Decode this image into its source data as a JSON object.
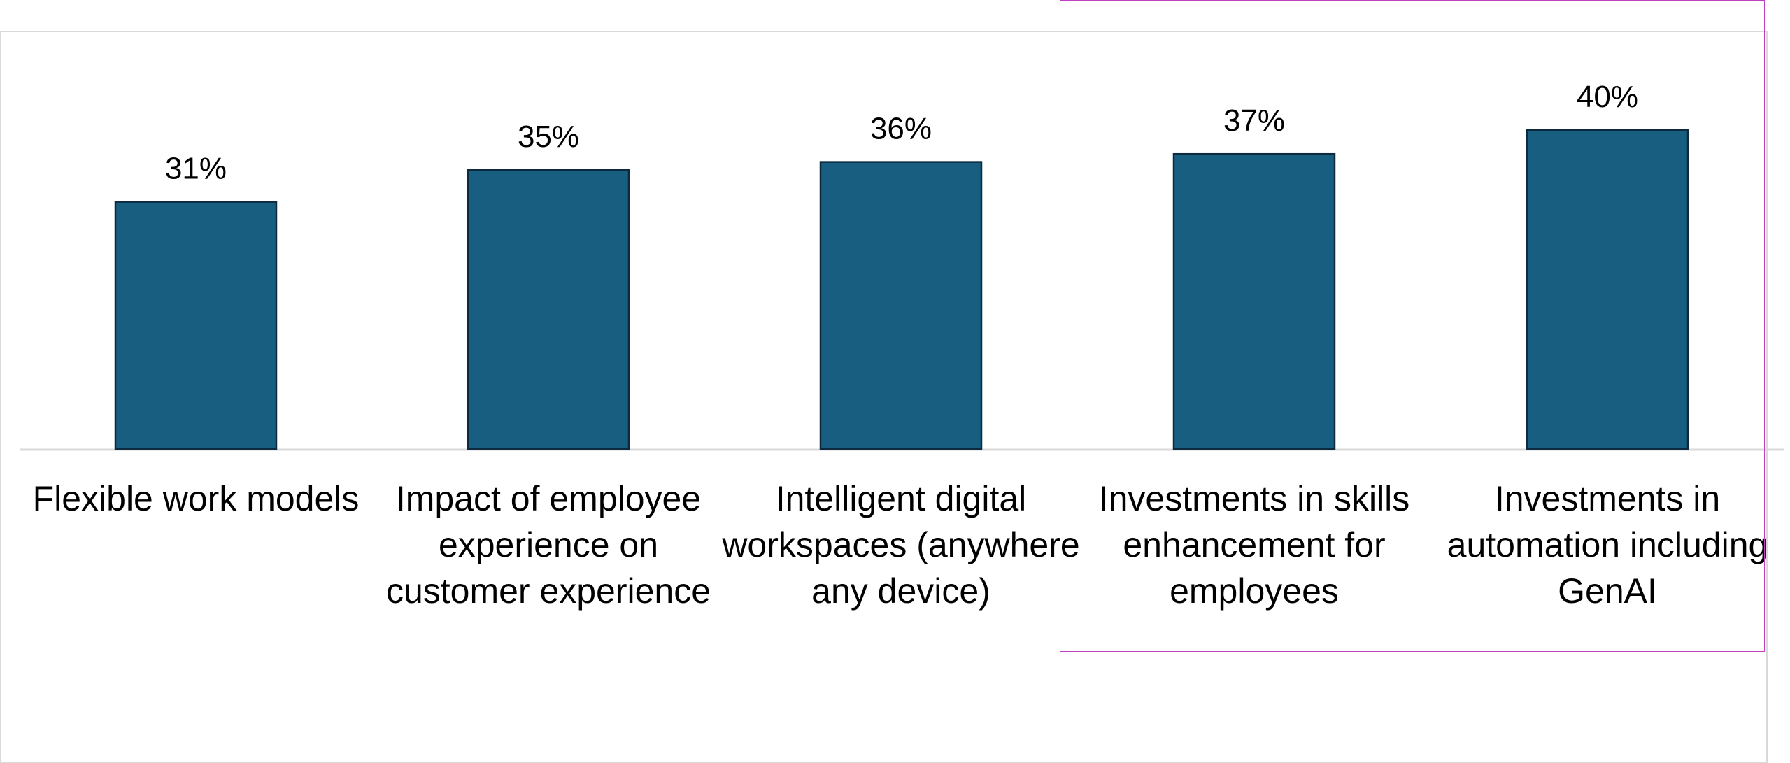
{
  "chart_data": {
    "type": "bar",
    "title": "",
    "xlabel": "",
    "ylabel": "",
    "categories": [
      "Flexible work models",
      "Impact of employee experience on customer experience",
      "Intelligent digital workspaces (anywhere any device)",
      "Investments in skills enhancement for employees",
      "Investments in automation including GenAI"
    ],
    "values": [
      31,
      35,
      36,
      37,
      40
    ],
    "data_labels": [
      "31%",
      "35%",
      "36%",
      "37%",
      "40%"
    ],
    "ylim": [
      0,
      45
    ],
    "grid": false,
    "highlighted_categories": [
      3,
      4
    ],
    "colors": {
      "bar": "#175e80",
      "bar_edge": "#0d2a3e",
      "axis": "#d9d9d9",
      "highlight": "#c040c0"
    }
  }
}
